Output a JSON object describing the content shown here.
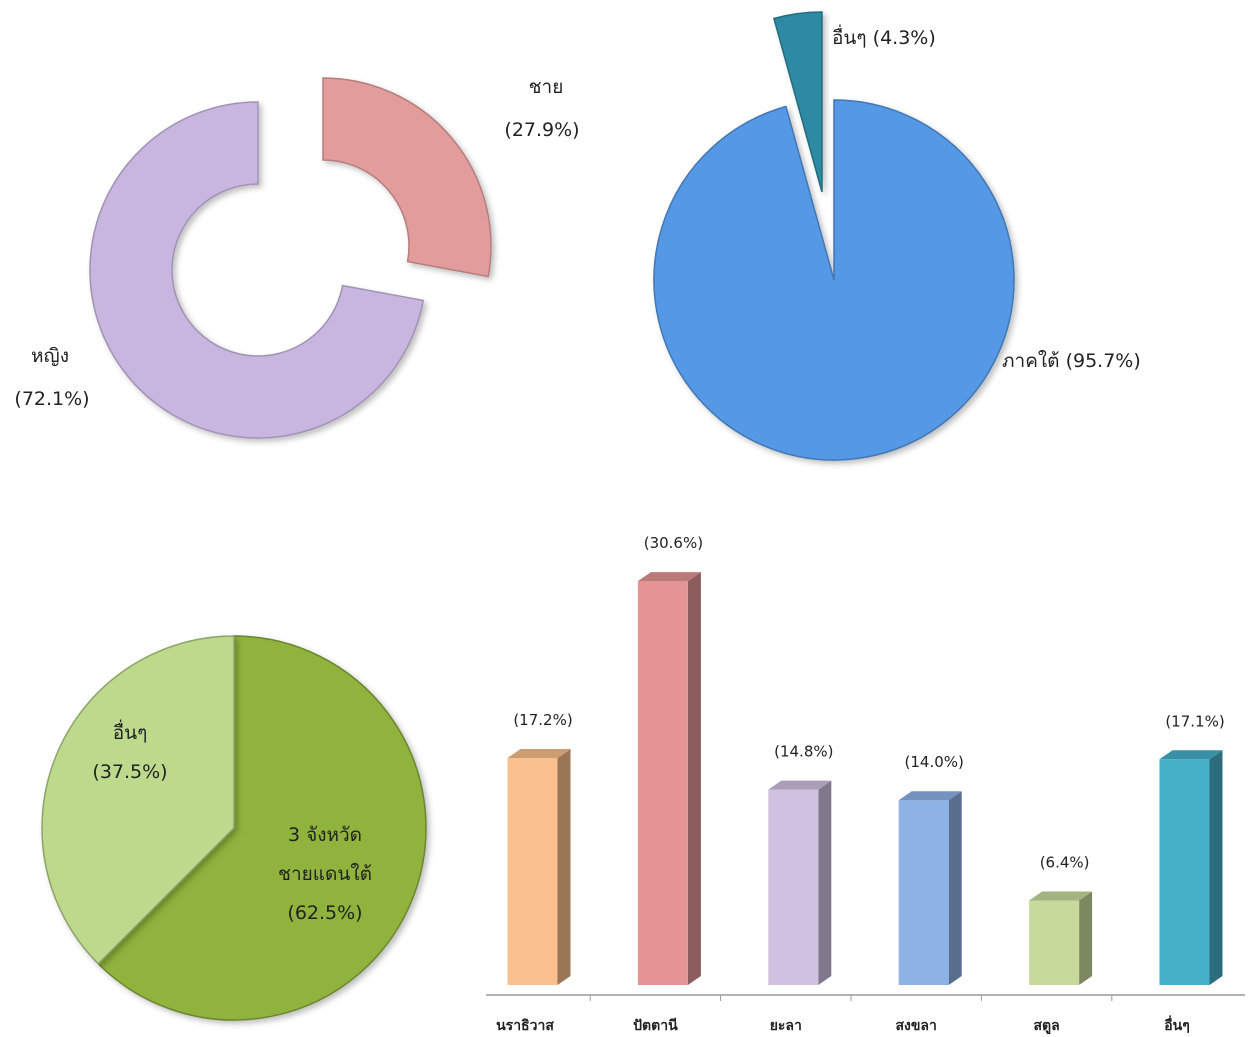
{
  "chart_data": [
    {
      "type": "pie",
      "variant": "exploded-doughnut",
      "slices": [
        {
          "category": "ชาย",
          "value": 27.9,
          "value_label": "(27.9%)",
          "color": "#e39c9c"
        },
        {
          "category": "หญิง",
          "value": 72.1,
          "value_label": "(72.1%)",
          "color": "#c9b6e0"
        }
      ]
    },
    {
      "type": "pie",
      "variant": "exploded",
      "slices": [
        {
          "category": "อื่นๆ",
          "value": 4.3,
          "value_label": "(4.3%)",
          "color": "#2e8aa3"
        },
        {
          "category": "ภาคใต้",
          "value": 95.7,
          "value_label": "(95.7%)",
          "color": "#5599e6"
        }
      ]
    },
    {
      "type": "pie",
      "slices": [
        {
          "category": "3 จังหวัด ชายแดนใต้",
          "category_lines": [
            "3 จังหวัด",
            "ชายแดนใต้"
          ],
          "value": 62.5,
          "value_label": "(62.5%)",
          "color": "#8fb33d"
        },
        {
          "category": "อื่นๆ",
          "value": 37.5,
          "value_label": "(37.5%)",
          "color": "#bcd98c"
        }
      ]
    },
    {
      "type": "bar",
      "style": "3d",
      "categories": [
        "นราธิวาส",
        "ปัตตานี",
        "ยะลา",
        "สงขลา",
        "สตูล",
        "อื่นๆ"
      ],
      "values": [
        17.2,
        30.6,
        14.8,
        14.0,
        6.4,
        17.1
      ],
      "value_labels": [
        "(17.2%)",
        "(30.6%)",
        "(14.8%)",
        "(14.0%)",
        "(6.4%)",
        "(17.1%)"
      ],
      "colors": [
        "#f9bf8c",
        "#e49494",
        "#cfc1e0",
        "#8db2e6",
        "#c6db9b",
        "#46b0c9"
      ],
      "grid": false,
      "legend": "none"
    }
  ]
}
